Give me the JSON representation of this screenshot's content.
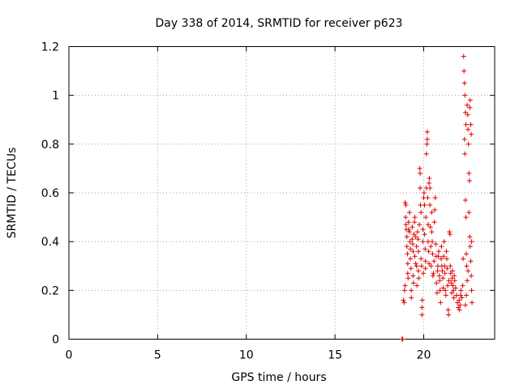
{
  "chart_data": {
    "type": "scatter",
    "title": "Day 338 of 2014, SRMTID for receiver p623",
    "xlabel": "GPS time / hours",
    "ylabel": "SRMTID / TECUs",
    "xlim": [
      0,
      24
    ],
    "ylim": [
      0,
      1.2
    ],
    "xticks": [
      "0",
      "5",
      "10",
      "15",
      "20"
    ],
    "yticks": [
      "0",
      "0.2",
      "0.4",
      "0.6",
      "0.8",
      "1",
      "1.2"
    ],
    "grid": true,
    "marker": "+",
    "color": "#e00000",
    "points": [
      [
        18.8,
        0.0
      ],
      [
        18.82,
        0.0
      ],
      [
        18.78,
        0.0
      ],
      [
        18.85,
        0.16
      ],
      [
        18.9,
        0.15
      ],
      [
        18.92,
        0.2
      ],
      [
        18.95,
        0.22
      ],
      [
        18.95,
        0.56
      ],
      [
        19.0,
        0.55
      ],
      [
        18.98,
        0.5
      ],
      [
        19.0,
        0.47
      ],
      [
        19.02,
        0.45
      ],
      [
        19.05,
        0.42
      ],
      [
        19.05,
        0.38
      ],
      [
        19.08,
        0.35
      ],
      [
        19.1,
        0.31
      ],
      [
        19.1,
        0.27
      ],
      [
        19.12,
        0.25
      ],
      [
        19.15,
        0.45
      ],
      [
        19.15,
        0.48
      ],
      [
        19.2,
        0.52
      ],
      [
        19.2,
        0.44
      ],
      [
        19.22,
        0.4
      ],
      [
        19.25,
        0.37
      ],
      [
        19.25,
        0.33
      ],
      [
        19.28,
        0.29
      ],
      [
        19.3,
        0.2
      ],
      [
        19.3,
        0.17
      ],
      [
        19.35,
        0.46
      ],
      [
        19.35,
        0.41
      ],
      [
        19.38,
        0.39
      ],
      [
        19.4,
        0.36
      ],
      [
        19.4,
        0.26
      ],
      [
        19.42,
        0.23
      ],
      [
        19.45,
        0.43
      ],
      [
        19.48,
        0.48
      ],
      [
        19.5,
        0.5
      ],
      [
        19.5,
        0.34
      ],
      [
        19.55,
        0.31
      ],
      [
        19.55,
        0.42
      ],
      [
        19.6,
        0.38
      ],
      [
        19.6,
        0.3
      ],
      [
        19.62,
        0.22
      ],
      [
        19.65,
        0.44
      ],
      [
        19.68,
        0.41
      ],
      [
        19.7,
        0.36
      ],
      [
        19.7,
        0.28
      ],
      [
        19.72,
        0.25
      ],
      [
        19.75,
        0.47
      ],
      [
        19.78,
        0.7
      ],
      [
        19.8,
        0.68
      ],
      [
        19.8,
        0.62
      ],
      [
        19.82,
        0.55
      ],
      [
        19.85,
        0.52
      ],
      [
        19.85,
        0.33
      ],
      [
        19.88,
        0.3
      ],
      [
        19.9,
        0.13
      ],
      [
        19.9,
        0.1
      ],
      [
        19.92,
        0.16
      ],
      [
        19.95,
        0.45
      ],
      [
        19.95,
        0.4
      ],
      [
        19.98,
        0.27
      ],
      [
        20.0,
        0.58
      ],
      [
        20.02,
        0.6
      ],
      [
        20.05,
        0.55
      ],
      [
        20.05,
        0.43
      ],
      [
        20.08,
        0.37
      ],
      [
        20.1,
        0.32
      ],
      [
        20.1,
        0.29
      ],
      [
        20.12,
        0.5
      ],
      [
        20.15,
        0.62
      ],
      [
        20.15,
        0.76
      ],
      [
        20.18,
        0.8
      ],
      [
        20.2,
        0.82
      ],
      [
        20.2,
        0.85
      ],
      [
        20.22,
        0.58
      ],
      [
        20.25,
        0.47
      ],
      [
        20.25,
        0.4
      ],
      [
        20.28,
        0.36
      ],
      [
        20.3,
        0.31
      ],
      [
        20.3,
        0.64
      ],
      [
        20.32,
        0.66
      ],
      [
        20.35,
        0.62
      ],
      [
        20.35,
        0.55
      ],
      [
        20.38,
        0.46
      ],
      [
        20.4,
        0.38
      ],
      [
        20.42,
        0.3
      ],
      [
        20.45,
        0.52
      ],
      [
        20.45,
        0.44
      ],
      [
        20.48,
        0.4
      ],
      [
        20.5,
        0.35
      ],
      [
        20.52,
        0.26
      ],
      [
        20.55,
        0.27
      ],
      [
        20.58,
        0.32
      ],
      [
        20.6,
        0.48
      ],
      [
        20.62,
        0.53
      ],
      [
        20.65,
        0.58
      ],
      [
        20.68,
        0.39
      ],
      [
        20.7,
        0.34
      ],
      [
        20.72,
        0.23
      ],
      [
        20.75,
        0.19
      ],
      [
        20.78,
        0.28
      ],
      [
        20.8,
        0.3
      ],
      [
        20.82,
        0.34
      ],
      [
        20.85,
        0.36
      ],
      [
        20.88,
        0.26
      ],
      [
        20.9,
        0.24
      ],
      [
        20.92,
        0.2
      ],
      [
        20.95,
        0.15
      ],
      [
        20.98,
        0.33
      ],
      [
        21.0,
        0.38
      ],
      [
        21.02,
        0.3
      ],
      [
        21.05,
        0.28
      ],
      [
        21.08,
        0.25
      ],
      [
        21.1,
        0.21
      ],
      [
        21.12,
        0.34
      ],
      [
        21.15,
        0.4
      ],
      [
        21.18,
        0.3
      ],
      [
        21.2,
        0.27
      ],
      [
        21.22,
        0.2
      ],
      [
        21.25,
        0.18
      ],
      [
        21.28,
        0.36
      ],
      [
        21.3,
        0.33
      ],
      [
        21.32,
        0.29
      ],
      [
        21.35,
        0.22
      ],
      [
        21.38,
        0.12
      ],
      [
        21.4,
        0.1
      ],
      [
        21.42,
        0.24
      ],
      [
        21.45,
        0.44
      ],
      [
        21.48,
        0.43
      ],
      [
        21.5,
        0.3
      ],
      [
        21.52,
        0.27
      ],
      [
        21.55,
        0.23
      ],
      [
        21.58,
        0.19
      ],
      [
        21.6,
        0.25
      ],
      [
        21.62,
        0.28
      ],
      [
        21.65,
        0.22
      ],
      [
        21.68,
        0.2
      ],
      [
        21.7,
        0.17
      ],
      [
        21.72,
        0.26
      ],
      [
        21.75,
        0.24
      ],
      [
        21.8,
        0.21
      ],
      [
        21.85,
        0.18
      ],
      [
        21.9,
        0.15
      ],
      [
        21.95,
        0.13
      ],
      [
        22.0,
        0.16
      ],
      [
        22.02,
        0.12
      ],
      [
        22.05,
        0.14
      ],
      [
        22.08,
        0.18
      ],
      [
        22.1,
        0.2
      ],
      [
        22.15,
        0.17
      ],
      [
        22.2,
        0.22
      ],
      [
        22.22,
        0.33
      ],
      [
        22.25,
        1.16
      ],
      [
        22.27,
        1.1
      ],
      [
        22.3,
        1.05
      ],
      [
        22.32,
        1.0
      ],
      [
        22.35,
        0.93
      ],
      [
        22.38,
        0.88
      ],
      [
        22.3,
        0.82
      ],
      [
        22.32,
        0.76
      ],
      [
        22.35,
        0.57
      ],
      [
        22.38,
        0.5
      ],
      [
        22.4,
        0.35
      ],
      [
        22.42,
        0.3
      ],
      [
        22.45,
        0.96
      ],
      [
        22.48,
        0.92
      ],
      [
        22.5,
        0.86
      ],
      [
        22.52,
        0.8
      ],
      [
        22.55,
        0.68
      ],
      [
        22.58,
        0.65
      ],
      [
        22.55,
        0.52
      ],
      [
        22.6,
        0.42
      ],
      [
        22.62,
        0.38
      ],
      [
        22.65,
        0.32
      ],
      [
        22.68,
        0.26
      ],
      [
        22.7,
        0.2
      ],
      [
        22.72,
        0.15
      ],
      [
        22.5,
        0.28
      ],
      [
        22.45,
        0.24
      ],
      [
        22.4,
        0.18
      ],
      [
        22.35,
        0.14
      ],
      [
        22.6,
        0.95
      ],
      [
        22.62,
        0.98
      ],
      [
        22.65,
        0.88
      ],
      [
        22.68,
        0.84
      ],
      [
        22.7,
        0.4
      ]
    ]
  }
}
